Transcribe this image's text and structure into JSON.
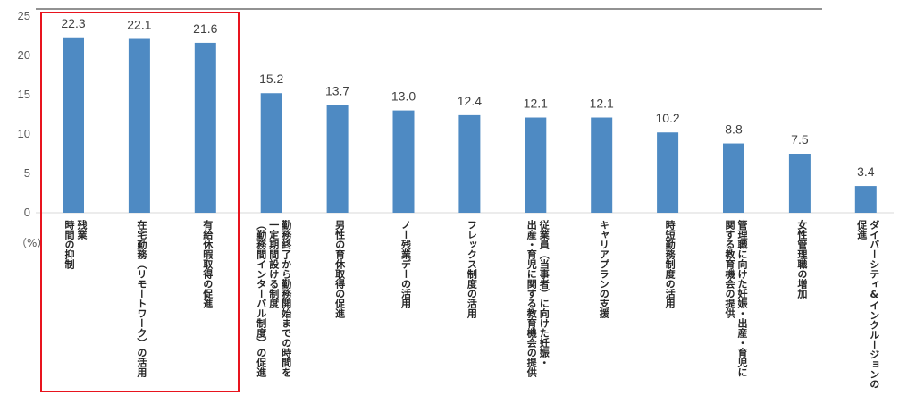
{
  "chart_data": {
    "type": "bar",
    "unit_label": "（%）",
    "ylim": [
      0,
      25
    ],
    "yticks": [
      0,
      5,
      10,
      15,
      20,
      25
    ],
    "grid": false,
    "bar_color": "#4e8ac3",
    "highlight_color": "#e8141e",
    "highlight_range": [
      0,
      2
    ],
    "categories": [
      "残業時間の抑制",
      "在宅勤務（リモートワーク）の活用",
      "有給休暇取得の促進",
      "勤務終了から勤務開始までの時間を一定期間設ける制度（勤務間インターバル制度）の促進",
      "男性の育休取得の促進",
      "ノー残業デーの活用",
      "フレックス制度の活用",
      "従業員（当事者）に向けた妊娠・出産・育児に関する教育機会の提供",
      "キャリアプランの支援",
      "時短勤務制度の活用",
      "管理職に向けた妊娠・出産・育児に関する教育機会の提供",
      "女性管理職の増加",
      "ダイバーシティ&インクルージョンの促進"
    ],
    "category_lines": [
      [
        "残業",
        "時間の抑制"
      ],
      [
        "在宅勤務（リモートワーク）の活用"
      ],
      [
        "有給休暇取得の促進"
      ],
      [
        "勤務終了から勤務開始までの時間を",
        "一定期間設ける制度",
        "（勤務間インターバル制度）の促進"
      ],
      [
        "男性の育休取得の促進"
      ],
      [
        "ノー残業デーの活用"
      ],
      [
        "フレックス制度の活用"
      ],
      [
        "従業員（当事者）に向けた妊娠・",
        "出産・育児に関する教育機会の提供"
      ],
      [
        "キャリアプランの支援"
      ],
      [
        "時短勤務制度の活用"
      ],
      [
        "管理職に向けた妊娠・出産・育児に",
        "関する教育機会の提供"
      ],
      [
        "女性管理職の増加"
      ],
      [
        "ダイバーシティ&インクルージョンの",
        "促進"
      ]
    ],
    "values": [
      22.3,
      22.1,
      21.6,
      15.2,
      13.7,
      13.0,
      12.4,
      12.1,
      12.1,
      10.2,
      8.8,
      7.5,
      3.4
    ],
    "value_labels": [
      "22.3",
      "22.1",
      "21.6",
      "15.2",
      "13.7",
      "13.0",
      "12.4",
      "12.1",
      "12.1",
      "10.2",
      "8.8",
      "7.5",
      "3.4"
    ]
  }
}
